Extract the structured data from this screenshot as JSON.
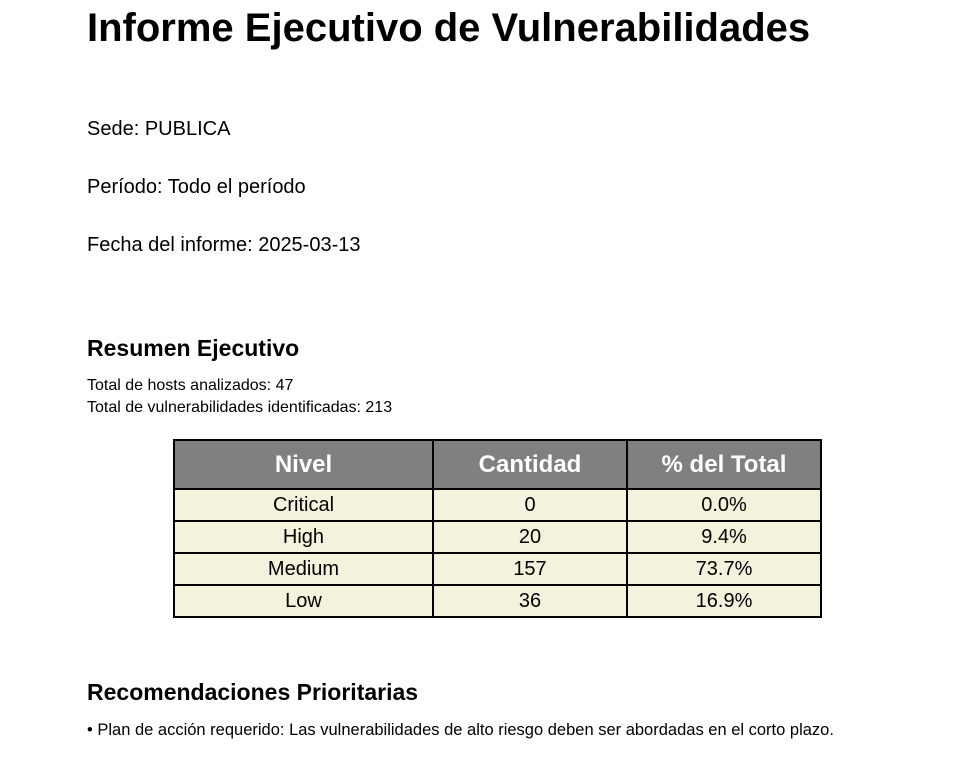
{
  "report": {
    "title": "Informe Ejecutivo de Vulnerabilidades",
    "sede": "Sede: PUBLICA",
    "periodo": "Período: Todo el período",
    "fecha": "Fecha del informe: 2025-03-13"
  },
  "summary": {
    "heading": "Resumen Ejecutivo",
    "hosts_text": "Total de hosts analizados: 47",
    "vulns_text": "Total de vulnerabilidades identificadas: 213"
  },
  "table": {
    "headers": [
      "Nivel",
      "Cantidad",
      "% del Total"
    ],
    "rows": [
      [
        "Critical",
        "0",
        "0.0%"
      ],
      [
        "High",
        "20",
        "9.4%"
      ],
      [
        "Medium",
        "157",
        "73.7%"
      ],
      [
        "Low",
        "36",
        "16.9%"
      ]
    ]
  },
  "recommendations": {
    "heading": "Recomendaciones Prioritarias",
    "items": [
      "• Plan de acción requerido: Las vulnerabilidades de alto riesgo deben ser abordadas en el corto plazo."
    ]
  },
  "colors": {
    "header_bg": "#808080",
    "cell_bg": "#f3f2dc"
  }
}
